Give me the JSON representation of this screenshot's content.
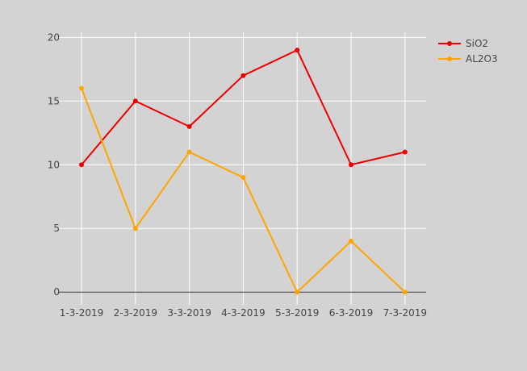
{
  "chart_data": {
    "type": "line",
    "title": "",
    "xlabel": "",
    "ylabel": "",
    "categories": [
      "1-3-2019",
      "2-3-2019",
      "3-3-2019",
      "4-3-2019",
      "5-3-2019",
      "6-3-2019",
      "7-3-2019"
    ],
    "yticks": [
      "0",
      "5",
      "10",
      "15",
      "20"
    ],
    "ylim": [
      -1,
      20.4
    ],
    "grid": true,
    "legend_position": "top-right",
    "series": [
      {
        "name": "SiO2",
        "color": "#ee0000",
        "values": [
          10,
          15,
          13,
          17,
          19,
          10,
          11
        ]
      },
      {
        "name": "AL2O3",
        "color": "#ffa500",
        "values": [
          16,
          5,
          11,
          9,
          0,
          4,
          0
        ]
      }
    ]
  },
  "colors": {
    "background": "#d3d3d3",
    "grid": "#ffffff",
    "zero_line": "#444444"
  }
}
